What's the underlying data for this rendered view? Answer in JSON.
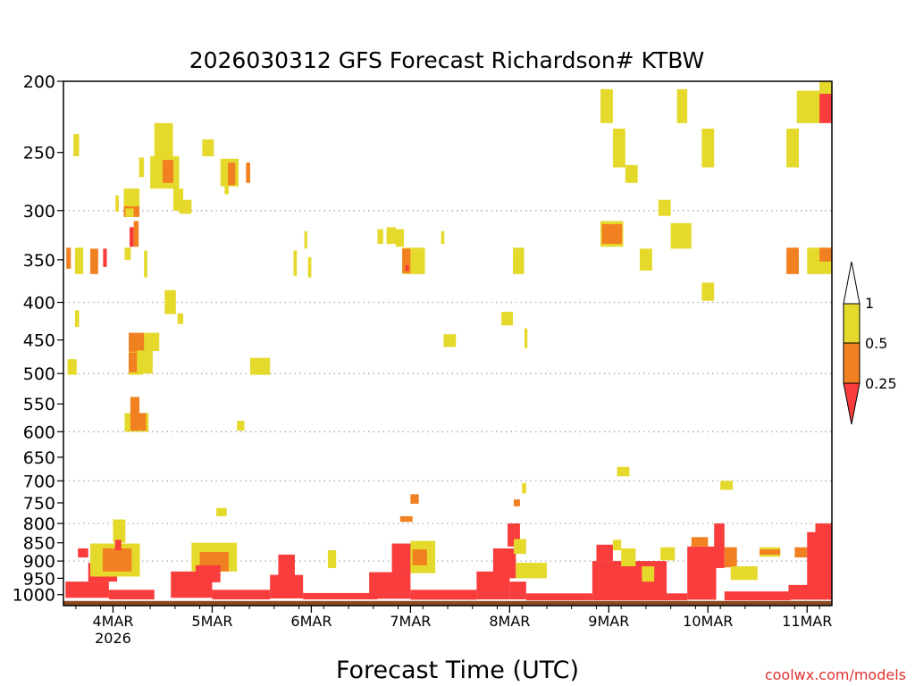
{
  "colors": {
    "level_1": "#e5d92c",
    "level_05": "#f08020",
    "level_025": "#f93c3c",
    "ground": "#8b4a22",
    "grid": "#aaaaaa",
    "watermark": "#e03030"
  },
  "chart_data": {
    "type": "heatmap",
    "title": "2026030312 GFS Forecast Richardson# KTBW",
    "xlabel": "Forecast Time (UTC)",
    "ylabel": "",
    "watermark": "coolwx.com/models",
    "x_units": "forecast hours from 2026-03-03 12Z",
    "xlim": [
      0,
      186
    ],
    "ylim": [
      1035,
      200
    ],
    "x_ticks": [
      {
        "hour": 12,
        "label": "4MAR",
        "sublabel": "2026"
      },
      {
        "hour": 36,
        "label": "5MAR"
      },
      {
        "hour": 60,
        "label": "6MAR"
      },
      {
        "hour": 84,
        "label": "7MAR"
      },
      {
        "hour": 108,
        "label": "8MAR"
      },
      {
        "hour": 132,
        "label": "9MAR"
      },
      {
        "hour": 156,
        "label": "10MAR"
      },
      {
        "hour": 180,
        "label": "11MAR"
      }
    ],
    "y_ticks": [
      "200",
      "250",
      "300",
      "350",
      "400",
      "450",
      "500",
      "550",
      "600",
      "650",
      "700",
      "750",
      "800",
      "850",
      "900",
      "950",
      "1000"
    ],
    "y_tick_values": [
      200,
      250,
      300,
      350,
      400,
      450,
      500,
      550,
      600,
      650,
      700,
      750,
      800,
      850,
      900,
      950,
      1000
    ],
    "gridlines": [
      300,
      400,
      500,
      600,
      700,
      800,
      900
    ],
    "ground": {
      "top_p": 1020
    },
    "legend": {
      "position": "right",
      "top_label": "1",
      "levels": [
        {
          "label": "0.5",
          "color_key": "level_1",
          "range": "0.5–1"
        },
        {
          "label": "0.25",
          "color_key": "level_05",
          "range": "0.25–0.5"
        },
        {
          "color_key": "level_025",
          "range": "< 0.25"
        }
      ]
    },
    "cells": [
      {
        "x0": 2.4,
        "x1": 3.8,
        "p0": 236,
        "p1": 253,
        "c": "y"
      },
      {
        "x0": 12.6,
        "x1": 13.4,
        "p0": 286,
        "p1": 301,
        "c": "y"
      },
      {
        "x0": 15.4,
        "x1": 16.2,
        "p0": 287,
        "p1": 304,
        "c": "o"
      },
      {
        "x0": 14.6,
        "x1": 18.4,
        "p0": 280,
        "p1": 306,
        "c": "y"
      },
      {
        "x0": 14.6,
        "x1": 18.4,
        "p0": 296,
        "p1": 306,
        "c": "o"
      },
      {
        "x0": 15.0,
        "x1": 17.0,
        "p0": 298,
        "p1": 306,
        "c": "y"
      },
      {
        "x0": 14.8,
        "x1": 16.3,
        "p0": 337,
        "p1": 350,
        "c": "y"
      },
      {
        "x0": 16.0,
        "x1": 17.0,
        "p0": 316,
        "p1": 336,
        "c": "r"
      },
      {
        "x0": 17.0,
        "x1": 18.2,
        "p0": 310,
        "p1": 336,
        "c": "o"
      },
      {
        "x0": 18.3,
        "x1": 19.5,
        "p0": 254,
        "p1": 270,
        "c": "y"
      },
      {
        "x0": 19.5,
        "x1": 20.3,
        "p0": 340,
        "p1": 370,
        "c": "y"
      },
      {
        "x0": 22.0,
        "x1": 26.5,
        "p0": 228,
        "p1": 263,
        "c": "y"
      },
      {
        "x0": 21.0,
        "x1": 28.0,
        "p0": 253,
        "p1": 280,
        "c": "y"
      },
      {
        "x0": 24.0,
        "x1": 26.6,
        "p0": 256,
        "p1": 275,
        "c": "o"
      },
      {
        "x0": 26.6,
        "x1": 29.0,
        "p0": 280,
        "p1": 300,
        "c": "y"
      },
      {
        "x0": 28.0,
        "x1": 31.0,
        "p0": 290,
        "p1": 303,
        "c": "y"
      },
      {
        "x0": 33.6,
        "x1": 36.4,
        "p0": 240,
        "p1": 253,
        "c": "y"
      },
      {
        "x0": 38.0,
        "x1": 42.4,
        "p0": 255,
        "p1": 278,
        "c": "y"
      },
      {
        "x0": 39.8,
        "x1": 41.6,
        "p0": 258,
        "p1": 277,
        "c": "o"
      },
      {
        "x0": 39.0,
        "x1": 40.0,
        "p0": 278,
        "p1": 285,
        "c": "y"
      },
      {
        "x0": 44.2,
        "x1": 45.2,
        "p0": 258,
        "p1": 275,
        "c": "o"
      },
      {
        "x0": 2.8,
        "x1": 4.8,
        "p0": 337,
        "p1": 366,
        "c": "y"
      },
      {
        "x0": 0.7,
        "x1": 1.8,
        "p0": 337,
        "p1": 360,
        "c": "o"
      },
      {
        "x0": 6.5,
        "x1": 8.4,
        "p0": 338,
        "p1": 366,
        "c": "o"
      },
      {
        "x0": 9.6,
        "x1": 10.5,
        "p0": 338,
        "p1": 358,
        "c": "r"
      },
      {
        "x0": 24.5,
        "x1": 27.2,
        "p0": 385,
        "p1": 415,
        "c": "y"
      },
      {
        "x0": 27.6,
        "x1": 29.0,
        "p0": 414,
        "p1": 428,
        "c": "y"
      },
      {
        "x0": 2.8,
        "x1": 3.8,
        "p0": 410,
        "p1": 432,
        "c": "y"
      },
      {
        "x0": 15.8,
        "x1": 19.6,
        "p0": 440,
        "p1": 468,
        "c": "o"
      },
      {
        "x0": 19.5,
        "x1": 23.2,
        "p0": 440,
        "p1": 466,
        "c": "y"
      },
      {
        "x0": 15.8,
        "x1": 19.2,
        "p0": 467,
        "p1": 502,
        "c": "y"
      },
      {
        "x0": 15.8,
        "x1": 17.8,
        "p0": 468,
        "p1": 498,
        "c": "o"
      },
      {
        "x0": 17.8,
        "x1": 21.6,
        "p0": 465,
        "p1": 500,
        "c": "y"
      },
      {
        "x0": 1.0,
        "x1": 3.2,
        "p0": 478,
        "p1": 502,
        "c": "y"
      },
      {
        "x0": 16.2,
        "x1": 18.4,
        "p0": 538,
        "p1": 566,
        "c": "o"
      },
      {
        "x0": 14.8,
        "x1": 20.6,
        "p0": 566,
        "p1": 600,
        "c": "y"
      },
      {
        "x0": 16.2,
        "x1": 20.0,
        "p0": 566,
        "p1": 598,
        "c": "o"
      },
      {
        "x0": 45.2,
        "x1": 50.0,
        "p0": 476,
        "p1": 502,
        "c": "y"
      },
      {
        "x0": 42.0,
        "x1": 43.8,
        "p0": 580,
        "p1": 598,
        "c": "y"
      },
      {
        "x0": 55.7,
        "x1": 56.5,
        "p0": 340,
        "p1": 368,
        "c": "y"
      },
      {
        "x0": 58.3,
        "x1": 59.0,
        "p0": 320,
        "p1": 338,
        "c": "y"
      },
      {
        "x0": 59.2,
        "x1": 60.0,
        "p0": 347,
        "p1": 370,
        "c": "y"
      },
      {
        "x0": 76.0,
        "x1": 77.4,
        "p0": 318,
        "p1": 333,
        "c": "y"
      },
      {
        "x0": 78.2,
        "x1": 80.5,
        "p0": 316,
        "p1": 333,
        "c": "y"
      },
      {
        "x0": 80.4,
        "x1": 82.4,
        "p0": 318,
        "p1": 336,
        "c": "y"
      },
      {
        "x0": 82.0,
        "x1": 87.5,
        "p0": 337,
        "p1": 366,
        "c": "y"
      },
      {
        "x0": 82.0,
        "x1": 84.0,
        "p0": 338,
        "p1": 365,
        "c": "o"
      },
      {
        "x0": 82.8,
        "x1": 83.6,
        "p0": 356,
        "p1": 362,
        "c": "r"
      },
      {
        "x0": 91.4,
        "x1": 92.2,
        "p0": 320,
        "p1": 333,
        "c": "y"
      },
      {
        "x0": 92.0,
        "x1": 95.0,
        "p0": 442,
        "p1": 460,
        "c": "y"
      },
      {
        "x0": 106.0,
        "x1": 108.8,
        "p0": 412,
        "p1": 430,
        "c": "y"
      },
      {
        "x0": 108.8,
        "x1": 111.5,
        "p0": 337,
        "p1": 366,
        "c": "y"
      },
      {
        "x0": 111.6,
        "x1": 112.3,
        "p0": 434,
        "p1": 462,
        "c": "y"
      },
      {
        "x0": 130.0,
        "x1": 133.0,
        "p0": 205,
        "p1": 228,
        "c": "y"
      },
      {
        "x0": 133.0,
        "x1": 136.0,
        "p0": 232,
        "p1": 262,
        "c": "y"
      },
      {
        "x0": 136.0,
        "x1": 139.0,
        "p0": 260,
        "p1": 275,
        "c": "y"
      },
      {
        "x0": 130.0,
        "x1": 135.5,
        "p0": 310,
        "p1": 336,
        "c": "y"
      },
      {
        "x0": 130.3,
        "x1": 135.2,
        "p0": 313,
        "p1": 333,
        "c": "o"
      },
      {
        "x0": 139.5,
        "x1": 142.5,
        "p0": 338,
        "p1": 362,
        "c": "y"
      },
      {
        "x0": 144.0,
        "x1": 147.0,
        "p0": 290,
        "p1": 305,
        "c": "y"
      },
      {
        "x0": 147.0,
        "x1": 152.0,
        "p0": 312,
        "p1": 338,
        "c": "y"
      },
      {
        "x0": 148.5,
        "x1": 151.0,
        "p0": 205,
        "p1": 228,
        "c": "y"
      },
      {
        "x0": 154.5,
        "x1": 157.5,
        "p0": 232,
        "p1": 262,
        "c": "y"
      },
      {
        "x0": 154.5,
        "x1": 157.5,
        "p0": 376,
        "p1": 398,
        "c": "y"
      },
      {
        "x0": 175.0,
        "x1": 178.0,
        "p0": 232,
        "p1": 262,
        "c": "y"
      },
      {
        "x0": 175.0,
        "x1": 178.0,
        "p0": 337,
        "p1": 366,
        "c": "o"
      },
      {
        "x0": 180.0,
        "x1": 186.0,
        "p0": 337,
        "p1": 366,
        "c": "y"
      },
      {
        "x0": 183.0,
        "x1": 186.0,
        "p0": 337,
        "p1": 352,
        "c": "o"
      },
      {
        "x0": 177.5,
        "x1": 183.5,
        "p0": 206,
        "p1": 228,
        "c": "y"
      },
      {
        "x0": 183.0,
        "x1": 186.0,
        "p0": 200,
        "p1": 210,
        "c": "y"
      },
      {
        "x0": 183.0,
        "x1": 186.0,
        "p0": 208,
        "p1": 228,
        "c": "r"
      },
      {
        "x0": 134.0,
        "x1": 137.0,
        "p0": 670,
        "p1": 690,
        "c": "y"
      },
      {
        "x0": 159.0,
        "x1": 162.0,
        "p0": 700,
        "p1": 720,
        "c": "y"
      },
      {
        "x0": 37.0,
        "x1": 39.5,
        "p0": 762,
        "p1": 782,
        "c": "y"
      },
      {
        "x0": 84.0,
        "x1": 86.0,
        "p0": 730,
        "p1": 752,
        "c": "o"
      },
      {
        "x0": 81.5,
        "x1": 84.5,
        "p0": 782,
        "p1": 796,
        "c": "o"
      },
      {
        "x0": 111.0,
        "x1": 112.0,
        "p0": 705,
        "p1": 728,
        "c": "y"
      },
      {
        "x0": 109.0,
        "x1": 110.5,
        "p0": 742,
        "p1": 758,
        "c": "o"
      },
      {
        "x0": 0.5,
        "x1": 11.0,
        "p0": 960,
        "p1": 1010,
        "c": "r"
      },
      {
        "x0": 11.0,
        "x1": 22.0,
        "p0": 985,
        "p1": 1015,
        "c": "r"
      },
      {
        "x0": 6.0,
        "x1": 13.0,
        "p0": 905,
        "p1": 960,
        "c": "r"
      },
      {
        "x0": 6.5,
        "x1": 18.5,
        "p0": 852,
        "p1": 945,
        "c": "y"
      },
      {
        "x0": 9.5,
        "x1": 16.5,
        "p0": 865,
        "p1": 930,
        "c": "o"
      },
      {
        "x0": 12.0,
        "x1": 15.0,
        "p0": 790,
        "p1": 850,
        "c": "y"
      },
      {
        "x0": 12.5,
        "x1": 14.0,
        "p0": 842,
        "p1": 870,
        "c": "r"
      },
      {
        "x0": 3.5,
        "x1": 6.0,
        "p0": 865,
        "p1": 890,
        "c": "r"
      },
      {
        "x0": 26.0,
        "x1": 36.0,
        "p0": 930,
        "p1": 1010,
        "c": "r"
      },
      {
        "x0": 31.0,
        "x1": 42.0,
        "p0": 850,
        "p1": 930,
        "c": "y"
      },
      {
        "x0": 33.0,
        "x1": 40.0,
        "p0": 875,
        "p1": 930,
        "c": "o"
      },
      {
        "x0": 32.0,
        "x1": 38.0,
        "p0": 912,
        "p1": 962,
        "c": "r"
      },
      {
        "x0": 36.0,
        "x1": 50.0,
        "p0": 985,
        "p1": 1015,
        "c": "r"
      },
      {
        "x0": 50.0,
        "x1": 58.0,
        "p0": 940,
        "p1": 1012,
        "c": "r"
      },
      {
        "x0": 52.0,
        "x1": 56.0,
        "p0": 882,
        "p1": 945,
        "c": "r"
      },
      {
        "x0": 58.0,
        "x1": 76.0,
        "p0": 995,
        "p1": 1015,
        "c": "r"
      },
      {
        "x0": 64.0,
        "x1": 66.0,
        "p0": 870,
        "p1": 920,
        "c": "y"
      },
      {
        "x0": 74.0,
        "x1": 84.0,
        "p0": 932,
        "p1": 1013,
        "c": "r"
      },
      {
        "x0": 79.5,
        "x1": 85.5,
        "p0": 852,
        "p1": 932,
        "c": "r"
      },
      {
        "x0": 84.0,
        "x1": 90.0,
        "p0": 845,
        "p1": 935,
        "c": "y"
      },
      {
        "x0": 84.5,
        "x1": 88.0,
        "p0": 868,
        "p1": 912,
        "c": "o"
      },
      {
        "x0": 84.0,
        "x1": 100.0,
        "p0": 985,
        "p1": 1016,
        "c": "r"
      },
      {
        "x0": 100.0,
        "x1": 108.0,
        "p0": 930,
        "p1": 1015,
        "c": "r"
      },
      {
        "x0": 104.0,
        "x1": 109.5,
        "p0": 865,
        "p1": 950,
        "c": "r"
      },
      {
        "x0": 107.5,
        "x1": 110.5,
        "p0": 800,
        "p1": 860,
        "c": "r"
      },
      {
        "x0": 109.0,
        "x1": 112.0,
        "p0": 840,
        "p1": 880,
        "c": "y"
      },
      {
        "x0": 109.5,
        "x1": 117.0,
        "p0": 905,
        "p1": 950,
        "c": "y"
      },
      {
        "x0": 108.0,
        "x1": 112.0,
        "p0": 960,
        "p1": 1015,
        "c": "r"
      },
      {
        "x0": 112.0,
        "x1": 128.0,
        "p0": 996,
        "p1": 1018,
        "c": "r"
      },
      {
        "x0": 128.0,
        "x1": 146.0,
        "p0": 900,
        "p1": 1018,
        "c": "r"
      },
      {
        "x0": 129.0,
        "x1": 133.0,
        "p0": 855,
        "p1": 900,
        "c": "r"
      },
      {
        "x0": 133.0,
        "x1": 135.0,
        "p0": 842,
        "p1": 870,
        "c": "y"
      },
      {
        "x0": 135.0,
        "x1": 138.5,
        "p0": 865,
        "p1": 915,
        "c": "y"
      },
      {
        "x0": 140.0,
        "x1": 143.0,
        "p0": 915,
        "p1": 960,
        "c": "y"
      },
      {
        "x0": 144.5,
        "x1": 148.0,
        "p0": 862,
        "p1": 898,
        "c": "y"
      },
      {
        "x0": 146.0,
        "x1": 151.0,
        "p0": 996,
        "p1": 1018,
        "c": "r"
      },
      {
        "x0": 151.0,
        "x1": 158.0,
        "p0": 860,
        "p1": 1016,
        "c": "r"
      },
      {
        "x0": 152.0,
        "x1": 156.0,
        "p0": 835,
        "p1": 860,
        "c": "o"
      },
      {
        "x0": 157.5,
        "x1": 160.0,
        "p0": 800,
        "p1": 920,
        "c": "r"
      },
      {
        "x0": 160.0,
        "x1": 163.0,
        "p0": 862,
        "p1": 918,
        "c": "o"
      },
      {
        "x0": 161.5,
        "x1": 168.0,
        "p0": 915,
        "p1": 955,
        "c": "y"
      },
      {
        "x0": 168.5,
        "x1": 173.5,
        "p0": 862,
        "p1": 888,
        "c": "y"
      },
      {
        "x0": 168.5,
        "x1": 173.5,
        "p0": 868,
        "p1": 882,
        "c": "o"
      },
      {
        "x0": 160.0,
        "x1": 176.0,
        "p0": 990,
        "p1": 1018,
        "c": "r"
      },
      {
        "x0": 175.5,
        "x1": 181.0,
        "p0": 970,
        "p1": 1016,
        "c": "r"
      },
      {
        "x0": 177.0,
        "x1": 180.0,
        "p0": 862,
        "p1": 890,
        "c": "o"
      },
      {
        "x0": 180.0,
        "x1": 186.0,
        "p0": 822,
        "p1": 1016,
        "c": "r"
      },
      {
        "x0": 182.0,
        "x1": 186.0,
        "p0": 800,
        "p1": 825,
        "c": "r"
      }
    ]
  }
}
